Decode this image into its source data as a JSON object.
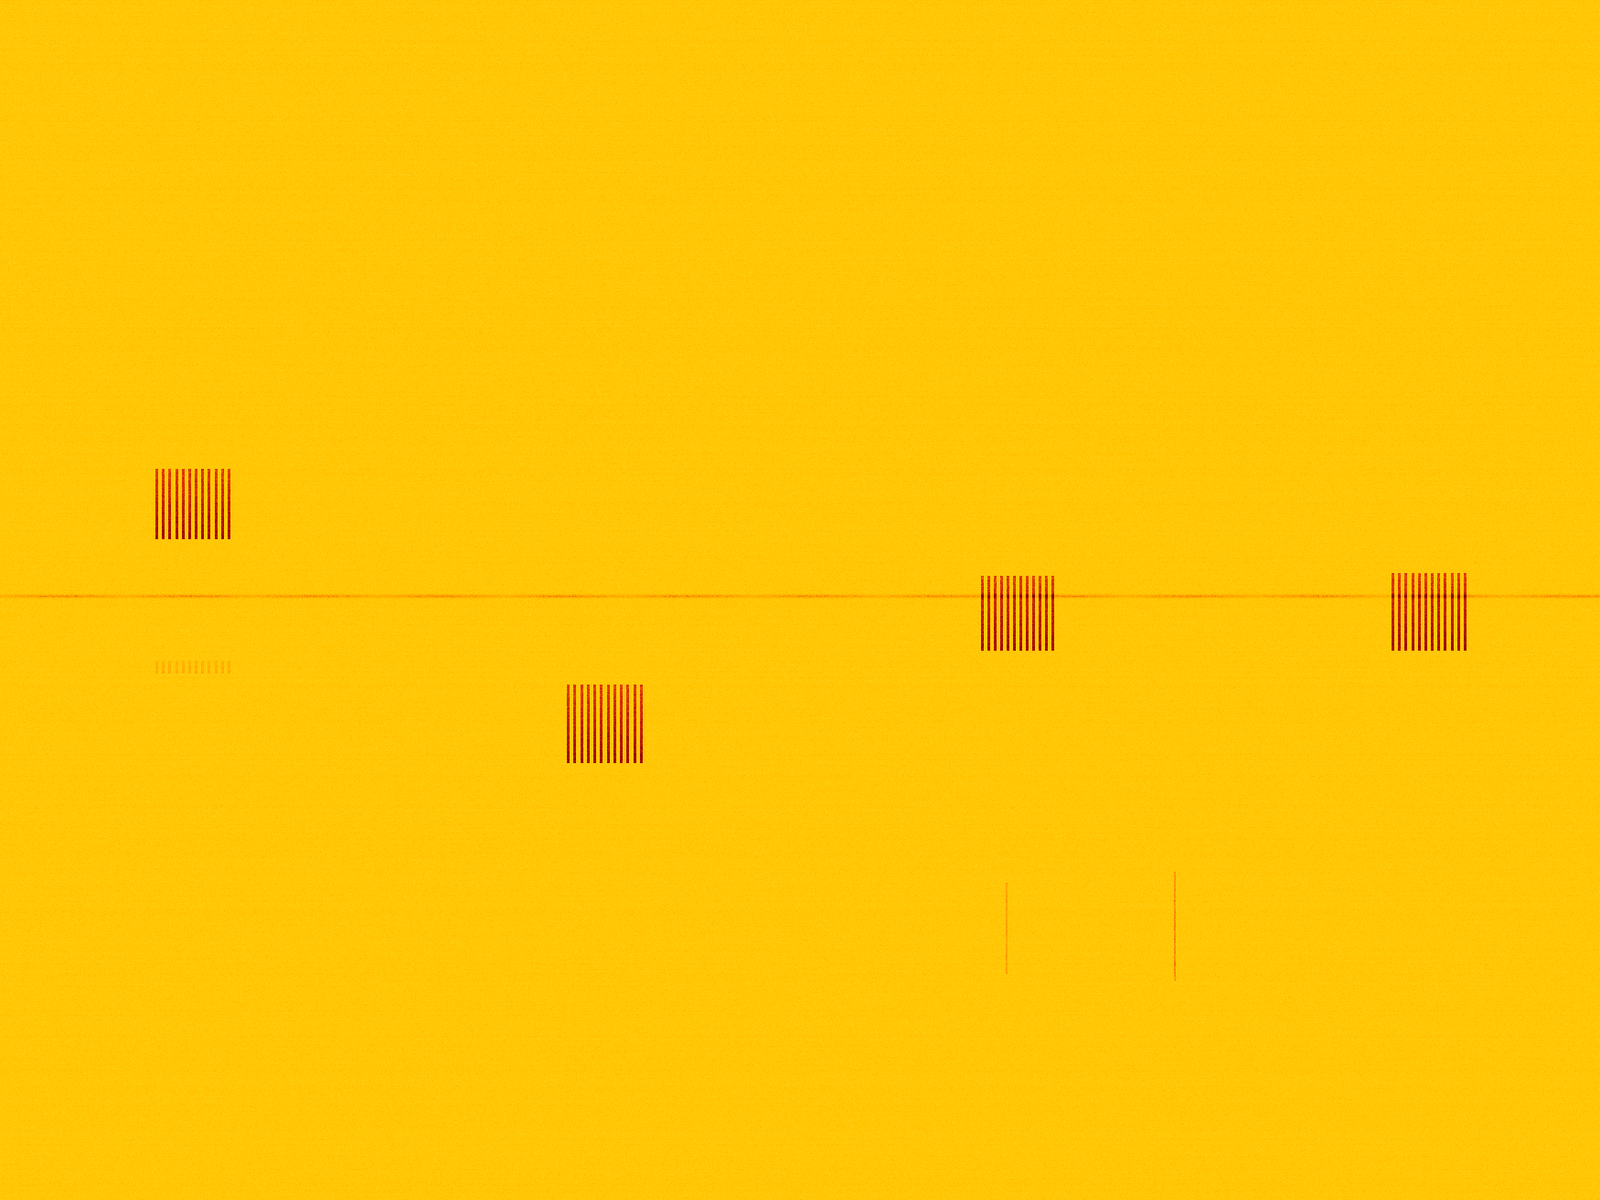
{
  "chart_data": {
    "type": "spectrogram",
    "tick_labels": false,
    "grid": false,
    "xlim": [
      0,
      1
    ],
    "ylim": [
      0,
      1
    ],
    "carrier": {
      "f": 0.503,
      "intensity": 0.35
    },
    "bursts": [
      {
        "t_start": 0.098,
        "t_end": 0.143,
        "f_low": 0.551,
        "f_high": 0.609,
        "pulses": 12,
        "intensity": 1.0
      },
      {
        "t_start": 0.098,
        "t_end": 0.143,
        "f_low": 0.439,
        "f_high": 0.449,
        "pulses": 12,
        "intensity": 0.3
      },
      {
        "t_start": 0.355,
        "t_end": 0.401,
        "f_low": 0.364,
        "f_high": 0.429,
        "pulses": 12,
        "intensity": 1.0
      },
      {
        "t_start": 0.614,
        "t_end": 0.658,
        "f_low": 0.458,
        "f_high": 0.52,
        "pulses": 12,
        "intensity": 1.0
      },
      {
        "t_start": 0.871,
        "t_end": 0.916,
        "f_low": 0.458,
        "f_high": 0.522,
        "pulses": 12,
        "intensity": 1.0
      }
    ],
    "transients": [
      {
        "t": 0.629,
        "f_low": 0.188,
        "f_high": 0.264,
        "intensity": 0.45
      },
      {
        "t": 0.734,
        "f_low": 0.183,
        "f_high": 0.273,
        "intensity": 0.55
      }
    ]
  }
}
